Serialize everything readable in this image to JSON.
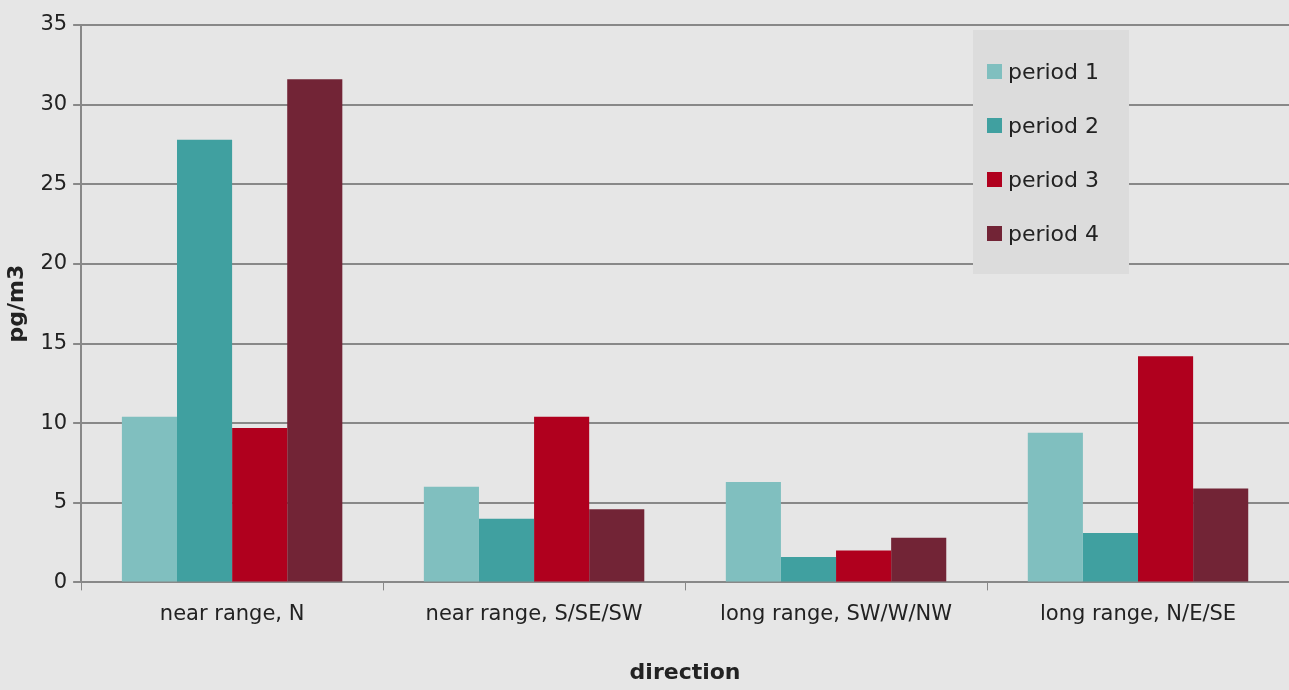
{
  "chart_data": {
    "type": "bar",
    "xlabel": "direction",
    "ylabel": "pg/m3",
    "categories": [
      "near range, N",
      "near range, S/SE/SW",
      "long range, SW/W/NW",
      "long range, N/E/SE"
    ],
    "series": [
      {
        "name": "period 1",
        "color": "#80bfbf",
        "values": [
          10.4,
          6.0,
          6.3,
          9.4
        ]
      },
      {
        "name": "period 2",
        "color": "#40a0a0",
        "values": [
          27.8,
          4.0,
          1.6,
          3.1
        ]
      },
      {
        "name": "period 3",
        "color": "#b0001e",
        "values": [
          9.7,
          10.4,
          2.0,
          14.2
        ]
      },
      {
        "name": "period 4",
        "color": "#722436",
        "values": [
          31.6,
          4.6,
          2.8,
          5.9
        ]
      }
    ],
    "ylim": [
      0,
      35
    ],
    "yticks": [
      0,
      5,
      10,
      15,
      20,
      25,
      30,
      35
    ],
    "grid": "y",
    "legend": "top right"
  }
}
